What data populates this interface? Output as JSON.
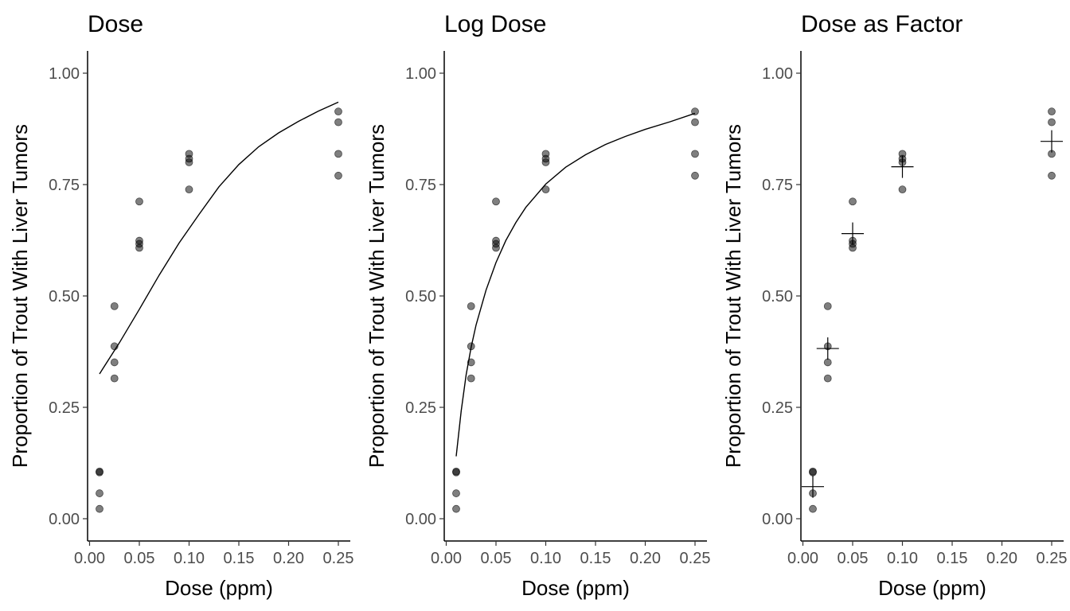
{
  "chart_data": [
    {
      "type": "scatter",
      "title": "Dose",
      "xlabel": "Dose (ppm)",
      "ylabel": "Proportion of Trout With Liver Tumors",
      "xlim": [
        -0.002,
        0.262
      ],
      "ylim": [
        -0.05,
        1.05
      ],
      "x_ticks": [
        0.0,
        0.05,
        0.1,
        0.15,
        0.2,
        0.25
      ],
      "x_tick_labels": [
        "0.00",
        "0.05",
        "0.10",
        "0.15",
        "0.20",
        "0.25"
      ],
      "y_ticks": [
        0.0,
        0.25,
        0.5,
        0.75,
        1.0
      ],
      "y_tick_labels": [
        "0.00",
        "0.25",
        "0.50",
        "0.75",
        "1.00"
      ],
      "grid": false,
      "points": {
        "x": [
          0.01,
          0.01,
          0.01,
          0.01,
          0.025,
          0.025,
          0.025,
          0.025,
          0.05,
          0.05,
          0.05,
          0.05,
          0.1,
          0.1,
          0.1,
          0.1,
          0.25,
          0.25,
          0.25,
          0.25
        ],
        "y": [
          0.106,
          0.104,
          0.057,
          0.022,
          0.477,
          0.387,
          0.351,
          0.315,
          0.712,
          0.624,
          0.617,
          0.608,
          0.819,
          0.808,
          0.8,
          0.739,
          0.914,
          0.89,
          0.819,
          0.77
        ]
      },
      "fit_line": {
        "x": [
          0.01,
          0.03,
          0.05,
          0.07,
          0.09,
          0.11,
          0.13,
          0.15,
          0.17,
          0.19,
          0.21,
          0.23,
          0.25
        ],
        "y": [
          0.325,
          0.395,
          0.47,
          0.547,
          0.619,
          0.683,
          0.745,
          0.795,
          0.835,
          0.866,
          0.892,
          0.915,
          0.935
        ]
      }
    },
    {
      "type": "scatter",
      "title": "Log Dose",
      "xlabel": "Dose (ppm)",
      "ylabel": "Proportion of Trout With Liver Tumors",
      "xlim": [
        -0.002,
        0.262
      ],
      "ylim": [
        -0.05,
        1.05
      ],
      "x_ticks": [
        0.0,
        0.05,
        0.1,
        0.15,
        0.2,
        0.25
      ],
      "x_tick_labels": [
        "0.00",
        "0.05",
        "0.10",
        "0.15",
        "0.20",
        "0.25"
      ],
      "y_ticks": [
        0.0,
        0.25,
        0.5,
        0.75,
        1.0
      ],
      "y_tick_labels": [
        "0.00",
        "0.25",
        "0.50",
        "0.75",
        "1.00"
      ],
      "grid": false,
      "points": {
        "x": [
          0.01,
          0.01,
          0.01,
          0.01,
          0.025,
          0.025,
          0.025,
          0.025,
          0.05,
          0.05,
          0.05,
          0.05,
          0.1,
          0.1,
          0.1,
          0.1,
          0.25,
          0.25,
          0.25,
          0.25
        ],
        "y": [
          0.106,
          0.104,
          0.057,
          0.022,
          0.477,
          0.387,
          0.351,
          0.315,
          0.712,
          0.624,
          0.617,
          0.608,
          0.819,
          0.808,
          0.8,
          0.739,
          0.914,
          0.89,
          0.819,
          0.77
        ]
      },
      "fit_line": {
        "x": [
          0.01,
          0.015,
          0.02,
          0.025,
          0.03,
          0.04,
          0.05,
          0.06,
          0.07,
          0.08,
          0.1,
          0.12,
          0.14,
          0.16,
          0.18,
          0.2,
          0.225,
          0.25
        ],
        "y": [
          0.14,
          0.242,
          0.323,
          0.385,
          0.435,
          0.513,
          0.575,
          0.625,
          0.665,
          0.699,
          0.751,
          0.789,
          0.817,
          0.84,
          0.858,
          0.874,
          0.891,
          0.91
        ]
      }
    },
    {
      "type": "scatter",
      "title": "Dose as Factor",
      "xlabel": "Dose (ppm)",
      "ylabel": "Proportion of Trout With Liver Tumors",
      "xlim": [
        -0.002,
        0.262
      ],
      "ylim": [
        -0.05,
        1.05
      ],
      "x_ticks": [
        0.0,
        0.05,
        0.1,
        0.15,
        0.2,
        0.25
      ],
      "x_tick_labels": [
        "0.00",
        "0.05",
        "0.10",
        "0.15",
        "0.20",
        "0.25"
      ],
      "y_ticks": [
        0.0,
        0.25,
        0.5,
        0.75,
        1.0
      ],
      "y_tick_labels": [
        "0.00",
        "0.25",
        "0.50",
        "0.75",
        "1.00"
      ],
      "grid": false,
      "points": {
        "x": [
          0.01,
          0.01,
          0.01,
          0.01,
          0.025,
          0.025,
          0.025,
          0.025,
          0.05,
          0.05,
          0.05,
          0.05,
          0.1,
          0.1,
          0.1,
          0.1,
          0.25,
          0.25,
          0.25,
          0.25
        ],
        "y": [
          0.106,
          0.104,
          0.057,
          0.022,
          0.477,
          0.387,
          0.351,
          0.315,
          0.712,
          0.624,
          0.617,
          0.608,
          0.819,
          0.808,
          0.8,
          0.739,
          0.914,
          0.89,
          0.819,
          0.77
        ]
      },
      "group_means": {
        "x": [
          0.01,
          0.025,
          0.05,
          0.1,
          0.25
        ],
        "y": [
          0.072,
          0.382,
          0.64,
          0.79,
          0.847
        ]
      }
    }
  ]
}
